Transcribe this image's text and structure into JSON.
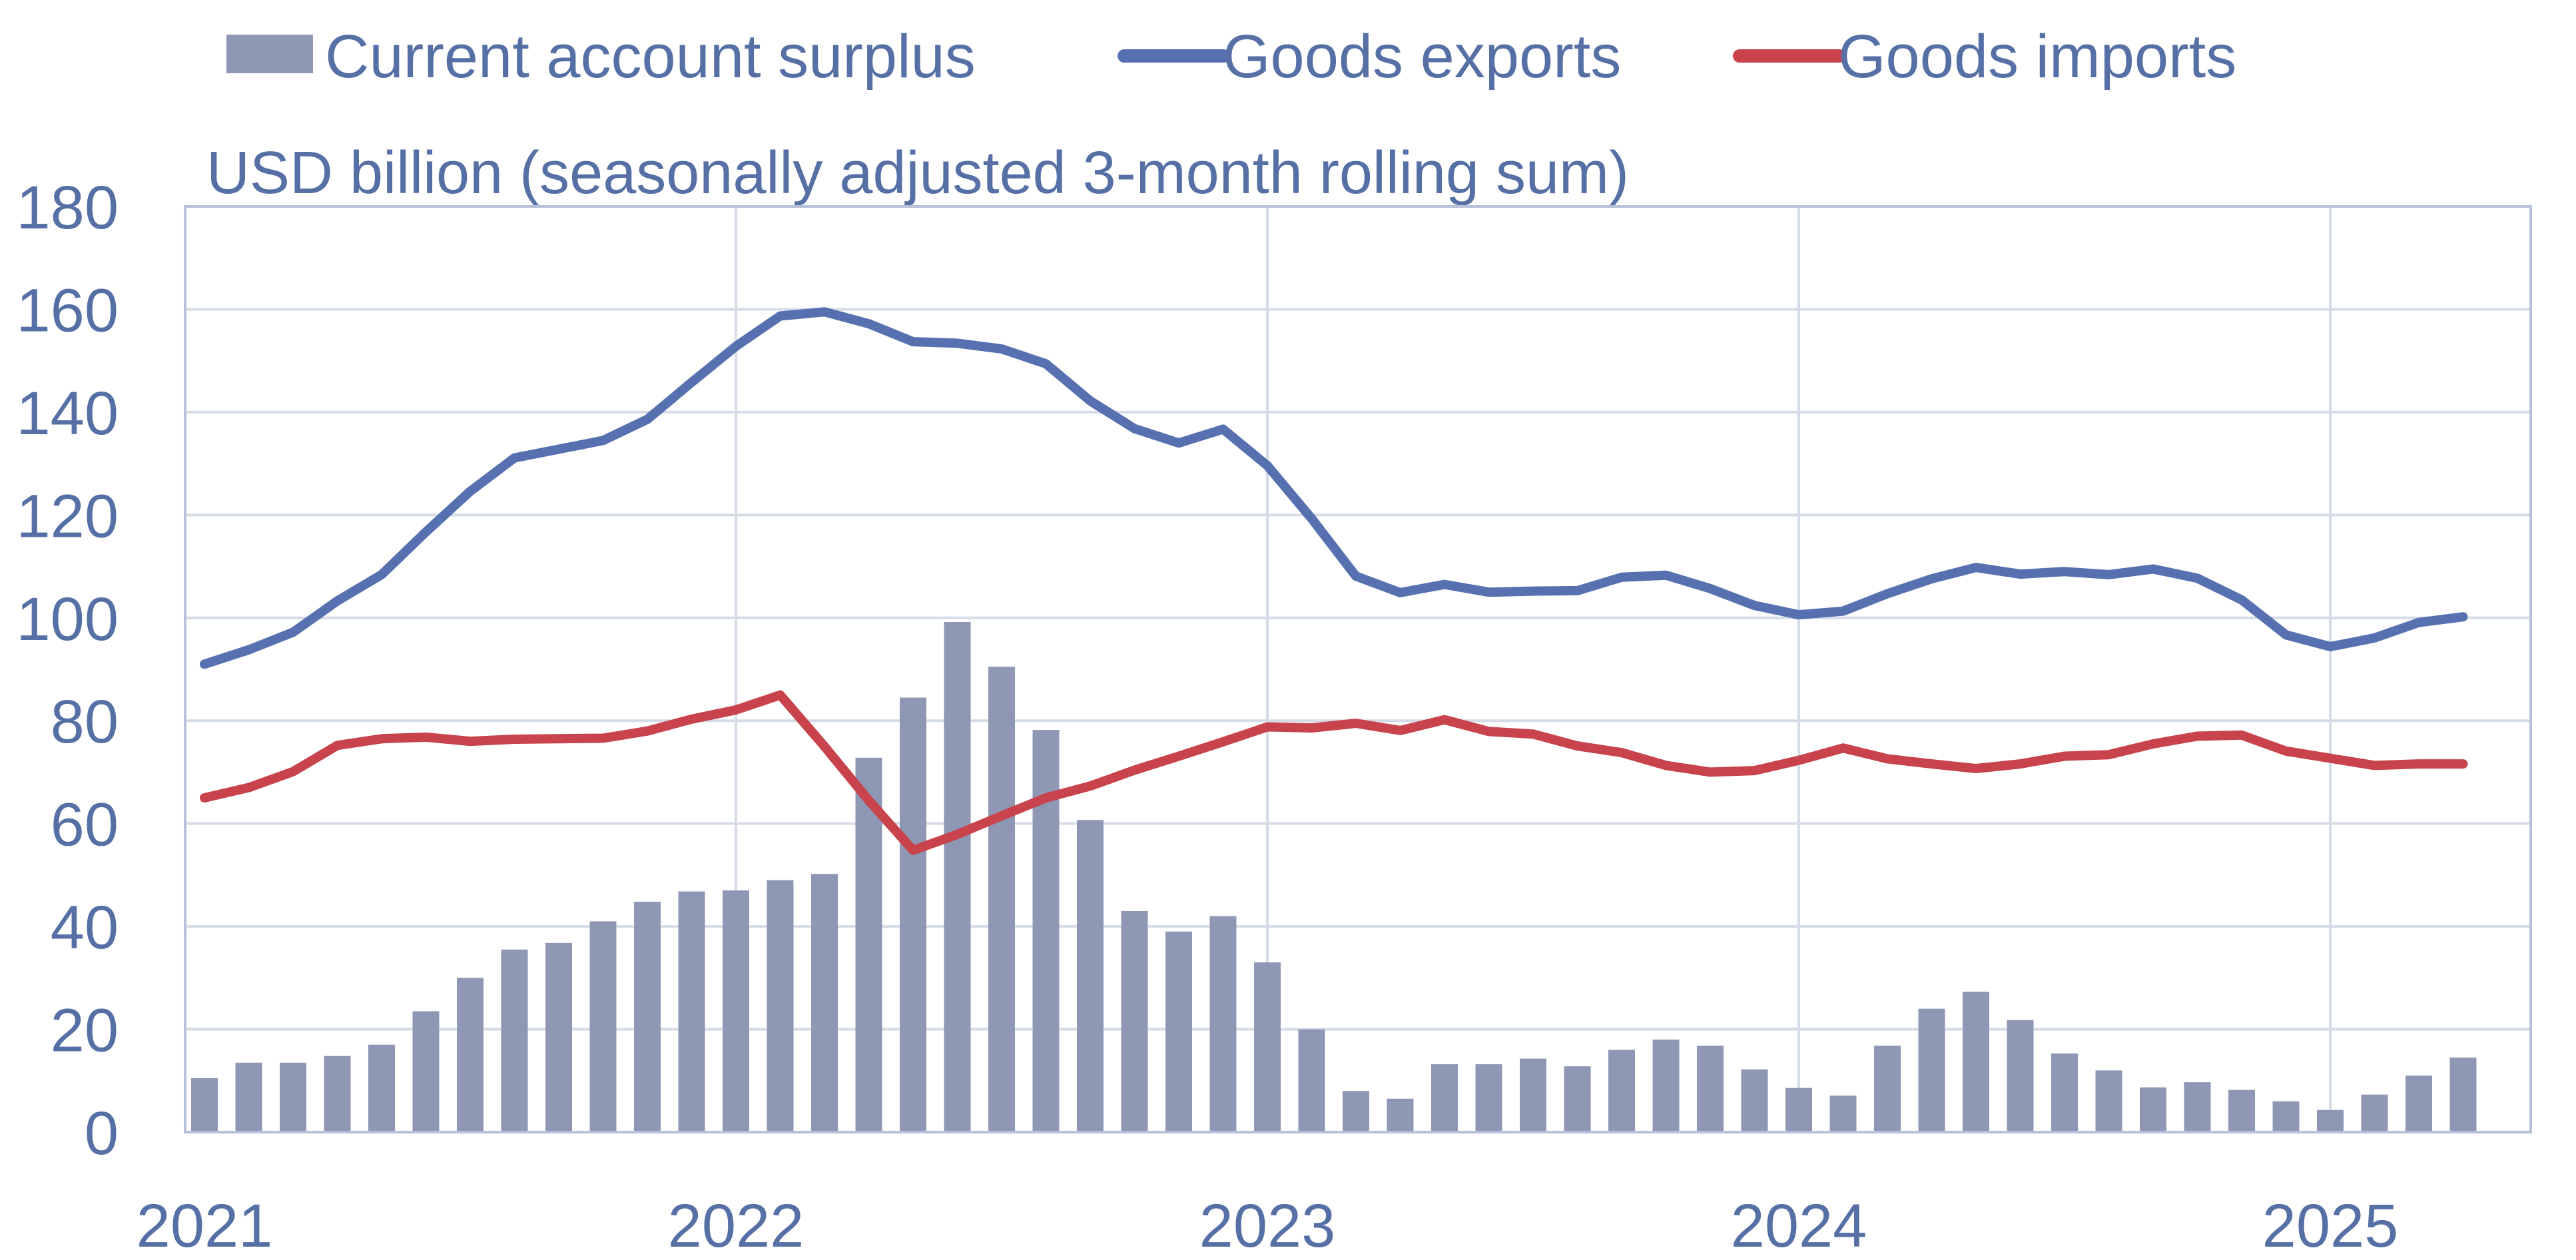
{
  "chart_data": {
    "type": "bar",
    "unit_label": "USD billion (seasonally adjusted 3-month rolling sum)",
    "legend": {
      "position": "top",
      "items": [
        {
          "label": "Current account surplus",
          "kind": "bar",
          "color": "#8e97b4"
        },
        {
          "label": "Goods exports",
          "kind": "line",
          "color": "#5670b0"
        },
        {
          "label": "Goods imports",
          "kind": "line",
          "color": "#c8434b"
        }
      ]
    },
    "x_ticks": [
      "2021",
      "2022",
      "2023",
      "2024",
      "2025"
    ],
    "y_ticks": [
      "0",
      "20",
      "40",
      "60",
      "80",
      "100",
      "120",
      "140",
      "160",
      "180"
    ],
    "ylim": [
      0,
      180
    ],
    "grid": true,
    "x_start": "2021-01",
    "x_end": "2025-04",
    "frequency": "monthly",
    "series": [
      {
        "name": "Current account surplus",
        "kind": "bar",
        "color": "#8e97b4",
        "values": [
          10.5,
          13.5,
          13.5,
          14.8,
          17,
          23.5,
          30,
          35.5,
          36.8,
          41,
          44.8,
          46.8,
          47,
          49,
          50.2,
          72.8,
          84.5,
          99.2,
          90.5,
          78.2,
          60.7,
          43,
          39,
          42,
          33,
          20,
          8,
          6.5,
          13.2,
          13.2,
          14.3,
          12.8,
          16,
          18,
          16.8,
          12.2,
          8.6,
          7.1,
          16.8,
          24,
          27.3,
          21.8,
          15.3,
          12,
          8.7,
          9.7,
          8.2,
          6,
          4.3,
          7.3,
          11,
          14.5
        ]
      },
      {
        "name": "Goods exports",
        "kind": "line",
        "color": "#5670b0",
        "values": [
          91,
          93.8,
          97.2,
          103.3,
          108.4,
          116.7,
          124.6,
          131.1,
          132.8,
          134.5,
          138.6,
          145.8,
          152.8,
          158.7,
          159.5,
          157.2,
          153.7,
          153.4,
          152.3,
          149.4,
          142.2,
          136.8,
          134,
          136.7,
          129.6,
          119.3,
          108.1,
          104.9,
          106.5,
          105,
          105.2,
          105.3,
          107.9,
          108.3,
          105.7,
          102.4,
          100.6,
          101.3,
          104.7,
          107.6,
          109.8,
          108.5,
          109,
          108.4,
          109.5,
          107.7,
          103.5,
          96.7,
          94.4,
          96.1,
          99.1,
          100.2
        ]
      },
      {
        "name": "Goods imports",
        "kind": "line",
        "color": "#c8434b",
        "values": [
          65,
          67,
          70.1,
          75.2,
          76.5,
          76.8,
          76,
          76.4,
          76.5,
          76.6,
          78,
          80.3,
          82.1,
          85,
          75,
          64.5,
          54.8,
          57.9,
          61.5,
          65,
          67.3,
          70.4,
          73.1,
          75.9,
          78.8,
          78.6,
          79.5,
          78.1,
          80.2,
          77.9,
          77.4,
          75.1,
          73.8,
          71.3,
          70,
          70.3,
          72.3,
          74.7,
          72.6,
          71.6,
          70.7,
          71.6,
          73.1,
          73.4,
          75.5,
          77,
          77.2,
          74.1,
          72.7,
          71.3,
          71.6,
          71.6
        ]
      }
    ]
  }
}
